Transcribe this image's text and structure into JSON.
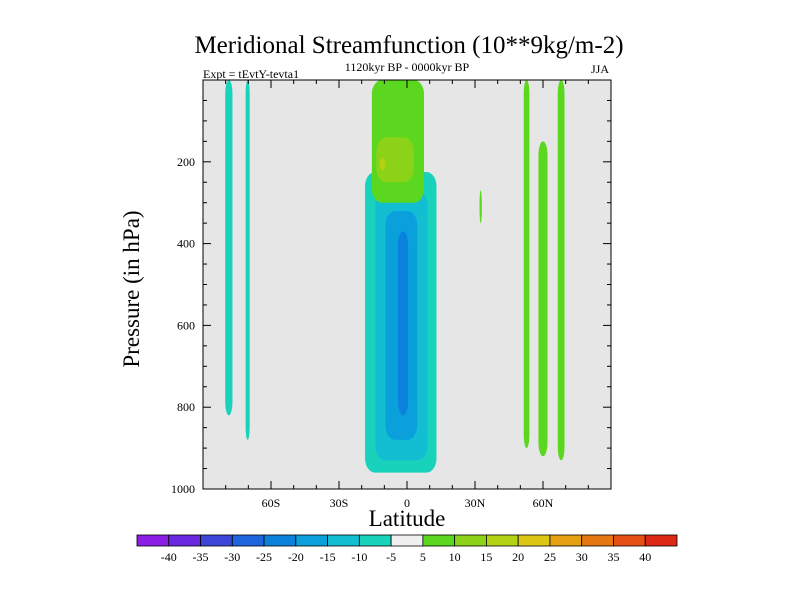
{
  "chart_data": {
    "type": "heatmap",
    "title": "Meridional Streamfunction (10**9kg/m-2)",
    "experiment": "Expt = tEvtY-tevta1",
    "period": "1120kyr BP - 0000kyr BP",
    "season": "JJA",
    "xlabel": "Latitude",
    "ylabel": "Pressure (in hPa)",
    "xlim": [
      -90,
      90
    ],
    "ylim": [
      1000,
      0
    ],
    "x_ticks": [
      {
        "value": -60,
        "label": "60S"
      },
      {
        "value": -30,
        "label": "30S"
      },
      {
        "value": 0,
        "label": "0"
      },
      {
        "value": 30,
        "label": "30N"
      },
      {
        "value": 60,
        "label": "60N"
      }
    ],
    "y_ticks": [
      {
        "value": 200,
        "label": "200"
      },
      {
        "value": 400,
        "label": "400"
      },
      {
        "value": 600,
        "label": "600"
      },
      {
        "value": 800,
        "label": "800"
      },
      {
        "value": 1000,
        "label": "1000"
      }
    ],
    "background_color": "#e6e6e6",
    "colorbar": {
      "labels": [
        "-40",
        "-35",
        "-30",
        "-25",
        "-20",
        "-15",
        "-10",
        "-5",
        "5",
        "10",
        "15",
        "20",
        "25",
        "30",
        "35",
        "40"
      ],
      "colors": [
        "#8c1ee6",
        "#6a28e0",
        "#3c46d8",
        "#1e64dc",
        "#0a82dc",
        "#0aa0dc",
        "#14bed2",
        "#19d2bb",
        "#f0f0f0",
        "#5ad71e",
        "#8cd219",
        "#b4d214",
        "#dcc814",
        "#e6a014",
        "#e67814",
        "#e65014",
        "#dc2814"
      ]
    },
    "contour_regions": [
      {
        "name": "sh-strip-a",
        "level": "-5",
        "color": "#19d2bb",
        "lat": [
          -80.2,
          -77.0
        ],
        "p_top": 0,
        "p_bottom": 820
      },
      {
        "name": "sh-strip-b",
        "level": "-5",
        "color": "#19d2bb",
        "lat": [
          -71.2,
          -69.4
        ],
        "p_top": 0,
        "p_bottom": 880
      },
      {
        "name": "center-outer",
        "level": "-5",
        "color": "#19d2bb",
        "lat": [
          -18.5,
          13.0
        ],
        "p_top": 225,
        "p_bottom": 960
      },
      {
        "name": "center-mid",
        "level": "-10",
        "color": "#14bed2",
        "lat": [
          -14.0,
          9.0
        ],
        "p_top": 270,
        "p_bottom": 930
      },
      {
        "name": "center-inner",
        "level": "-15",
        "color": "#0aa0dc",
        "lat": [
          -9.5,
          4.5
        ],
        "p_top": 320,
        "p_bottom": 880
      },
      {
        "name": "center-core",
        "level": "-20",
        "color": "#0a82dc",
        "lat": [
          -4.0,
          0.5
        ],
        "p_top": 370,
        "p_bottom": 820
      },
      {
        "name": "tropical-upper-outer",
        "level": "5",
        "color": "#5ad71e",
        "lat": [
          -15.5,
          7.5
        ],
        "p_top": 0,
        "p_bottom": 300
      },
      {
        "name": "tropical-upper-inner",
        "level": "10",
        "color": "#8cd219",
        "lat": [
          -13.5,
          3.0
        ],
        "p_top": 140,
        "p_bottom": 250
      },
      {
        "name": "tropical-upper-core",
        "level": "15",
        "color": "#b4d214",
        "lat": [
          -12.0,
          -9.5
        ],
        "p_top": 190,
        "p_bottom": 220
      },
      {
        "name": "nh-strip-a",
        "level": "5",
        "color": "#5ad71e",
        "lat": [
          51.5,
          54.0
        ],
        "p_top": 0,
        "p_bottom": 900
      },
      {
        "name": "nh-strip-b",
        "level": "5",
        "color": "#5ad71e",
        "lat": [
          58.0,
          62.0
        ],
        "p_top": 150,
        "p_bottom": 920
      },
      {
        "name": "nh-strip-c",
        "level": "5",
        "color": "#5ad71e",
        "lat": [
          66.5,
          69.5
        ],
        "p_top": 0,
        "p_bottom": 930
      },
      {
        "name": "nh-speck",
        "level": "5",
        "color": "#5ad71e",
        "lat": [
          32.0,
          33.0
        ],
        "p_top": 270,
        "p_bottom": 350
      }
    ]
  }
}
